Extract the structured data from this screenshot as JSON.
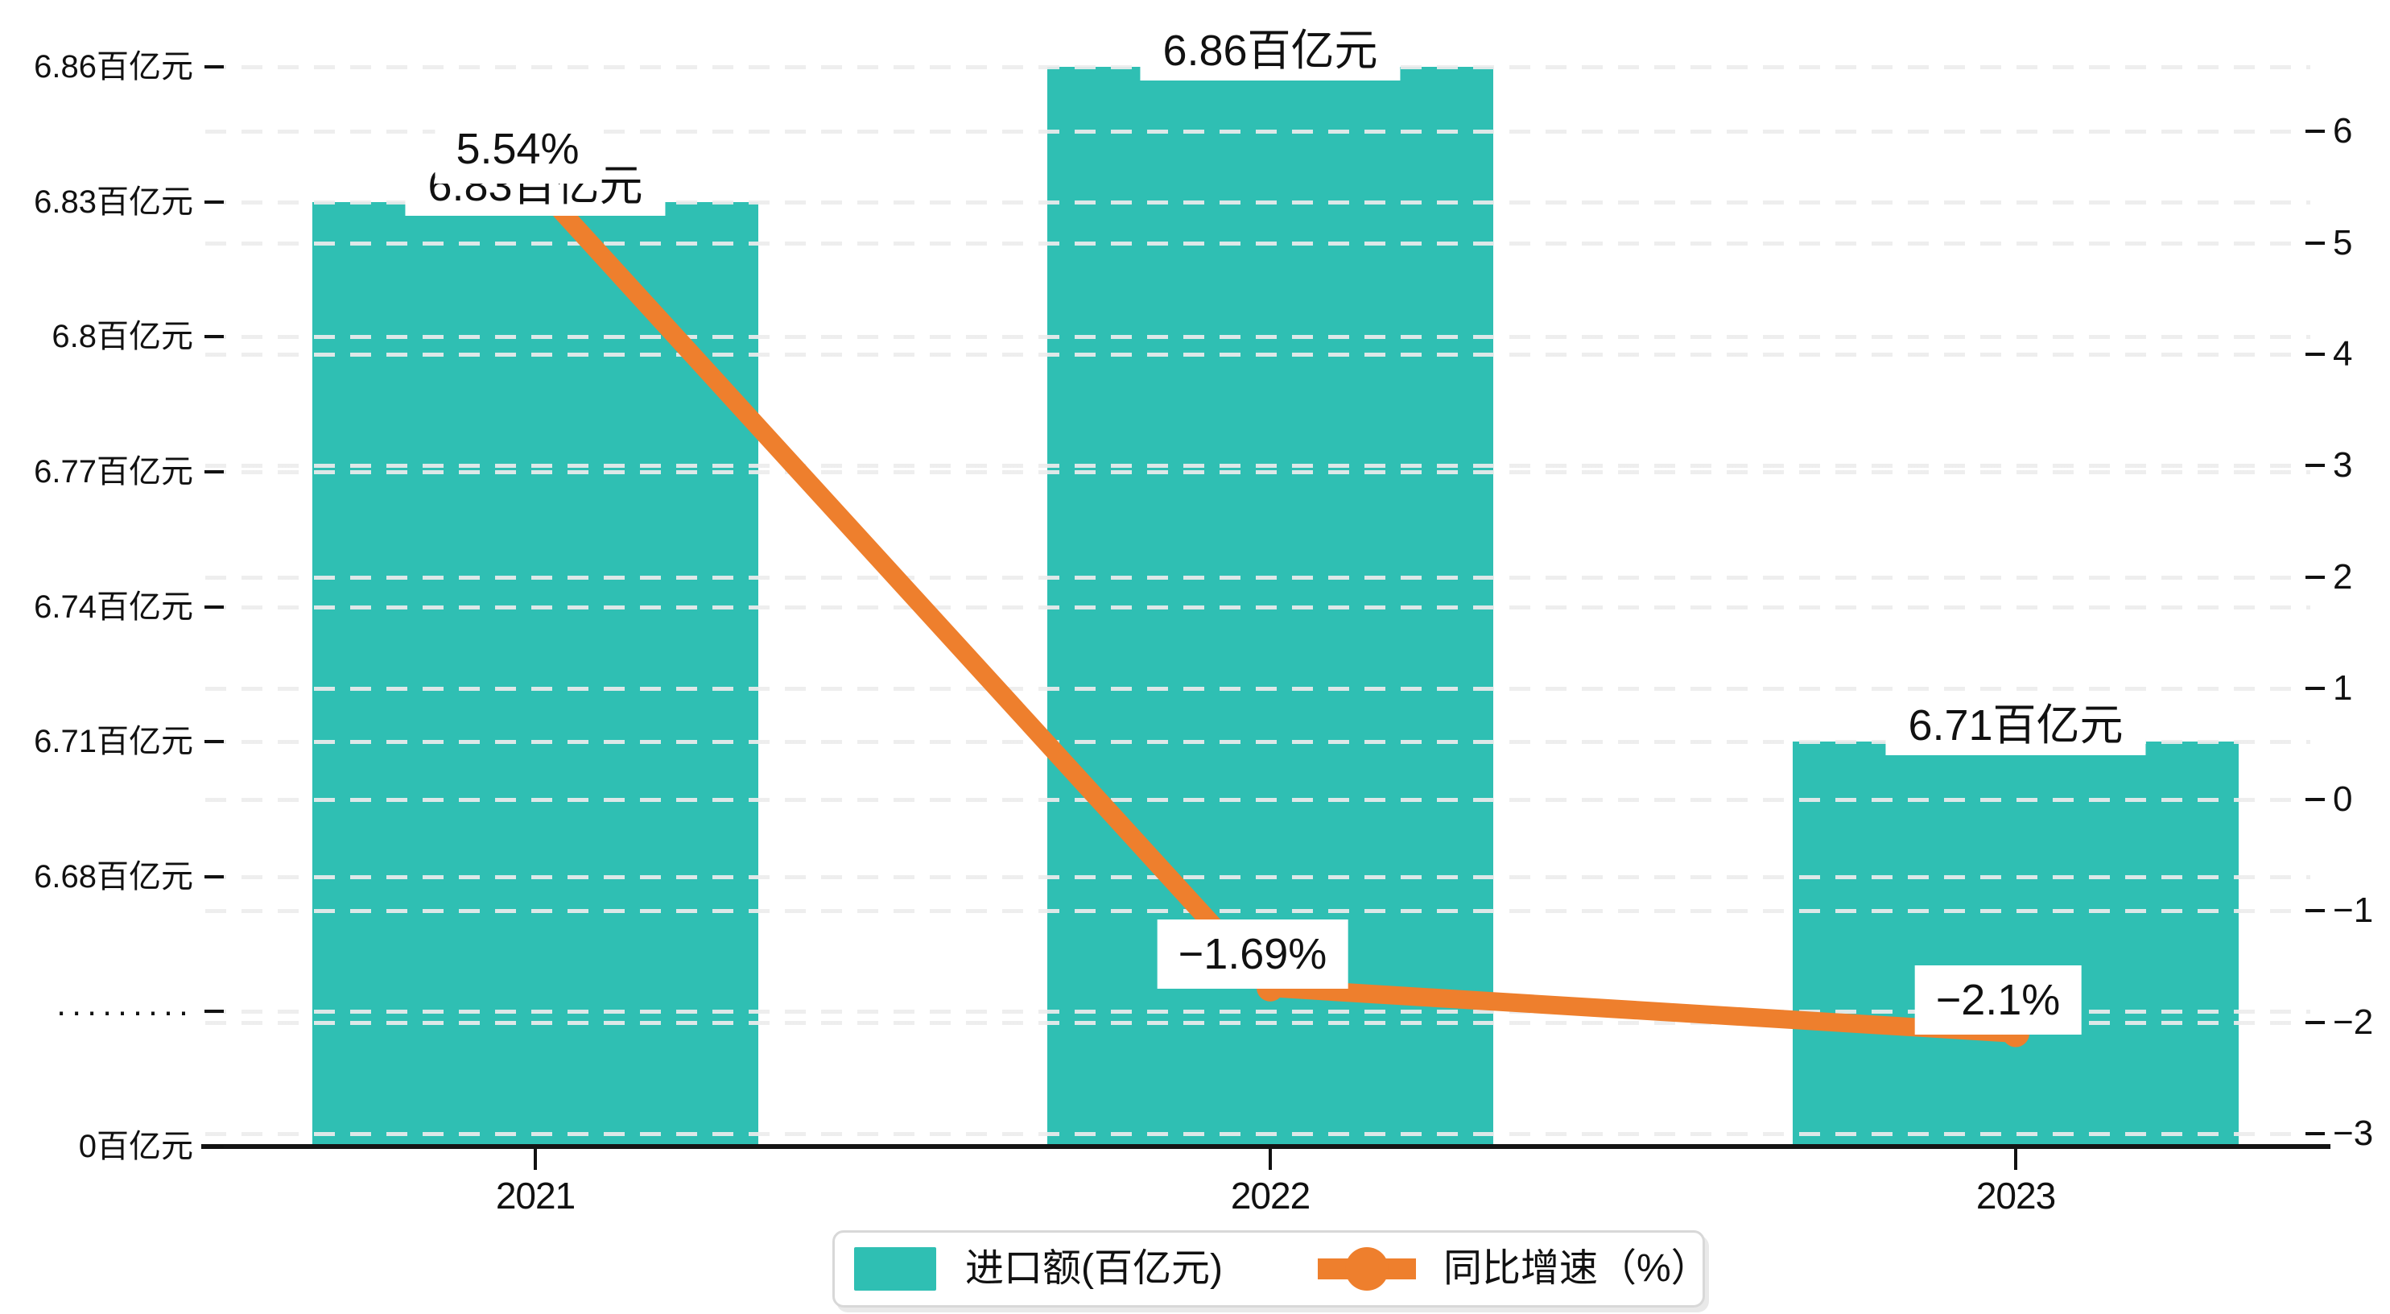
{
  "colors": {
    "bar": "#2fbfb3",
    "line": "#ee7f2d",
    "grid": "#ececec",
    "axis": "#141414",
    "label_background": "#ffffff",
    "legend_border": "#d8d8d8"
  },
  "chart_data": {
    "type": "bar",
    "subtype": "bar-line-combo",
    "categories": [
      "2021",
      "2022",
      "2023"
    ],
    "series": [
      {
        "name": "进口额(百亿元)",
        "type": "bar",
        "values": [
          6.83,
          6.86,
          6.71
        ],
        "data_labels": [
          "6.83百亿元",
          "6.86百亿元",
          "6.71百亿元"
        ],
        "color": "#2fbfb3",
        "axis": "left"
      },
      {
        "name": "同比增速（%）",
        "type": "line",
        "values": [
          5.54,
          -1.69,
          -2.1
        ],
        "data_labels": [
          "5.54%",
          "−1.69%",
          "−2.1%"
        ],
        "color": "#ee7f2d",
        "axis": "right"
      }
    ],
    "y_axis_left": {
      "tick_labels": [
        "6.86百亿元",
        "6.83百亿元",
        "6.8百亿元",
        "6.77百亿元",
        "6.74百亿元",
        "6.71百亿元",
        "6.68百亿元",
        "·········",
        "0百亿元"
      ],
      "has_break": true,
      "unit": "百亿元"
    },
    "y_axis_right": {
      "tick_labels": [
        "6",
        "5",
        "4",
        "3",
        "2",
        "1",
        "0",
        "−1",
        "−2",
        "−3"
      ],
      "min": -3,
      "max": 6
    },
    "grid": true,
    "legend_position": "bottom",
    "title": ""
  }
}
